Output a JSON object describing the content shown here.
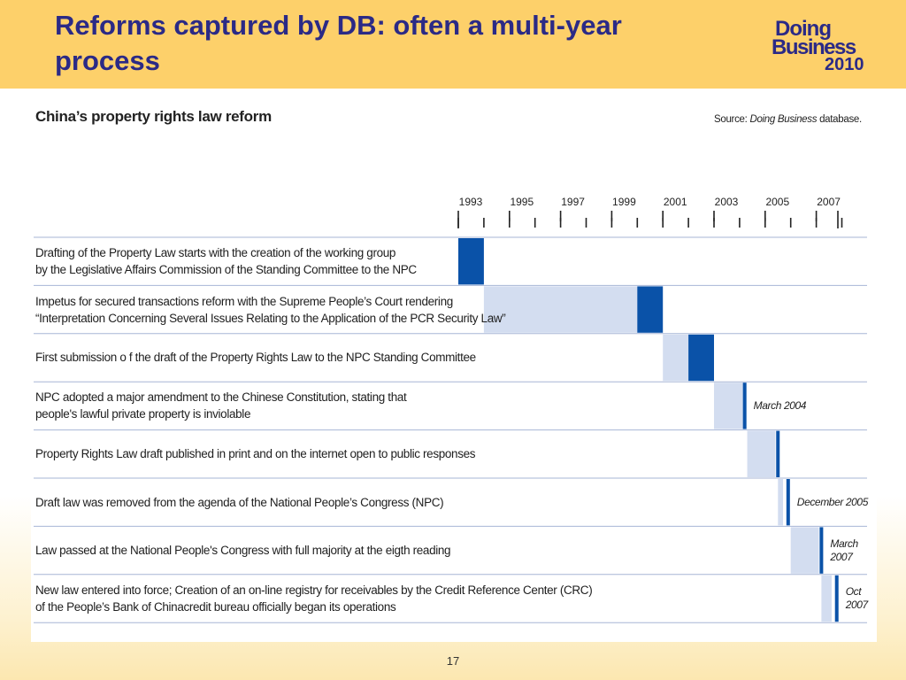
{
  "slide": {
    "title": "Reforms captured by DB: often a multi-year process",
    "page_number": "17"
  },
  "logo": {
    "line1": "Doing",
    "line2": "Business",
    "line3": "2010",
    "color": "#2b2a86"
  },
  "figure": {
    "title": "China’s property rights law reform",
    "source_label": "Source:",
    "source_italic": "Doing Business",
    "source_rest": " database."
  },
  "colors": {
    "header_bg": "#fdd06a",
    "bar_dark": "#0a52a8",
    "bar_light": "#d3ddf0",
    "gridline": "#a7b6d6"
  },
  "chart_data": {
    "type": "gantt",
    "year_ticks": [
      "1993",
      "1995",
      "1997",
      "1999",
      "2001",
      "2003",
      "2005",
      "2007"
    ],
    "rows": [
      {
        "label": "Drafting of the Property  Law starts with the creation of the working group\nby the Legislative Affairs Commission of the Standing Committee to the NPC",
        "light": null,
        "dark": [
          1993.0,
          1994.0
        ],
        "marker": null,
        "annotation": ""
      },
      {
        "label": "Impetus for secured transactions reform with the Supreme People’s Court rendering\n“Interpretation Concerning Several Issues Relating to the Application of the PCR Security Law”",
        "light": [
          1994.0,
          2000.0
        ],
        "dark": [
          2000.0,
          2001.0
        ],
        "marker": null,
        "annotation": ""
      },
      {
        "label": "First submission o f the draft of the Property Rights Law  to the NPC Standing Committee",
        "light": [
          2001.0,
          2002.0
        ],
        "dark": [
          2002.0,
          2003.0
        ],
        "marker": null,
        "annotation": ""
      },
      {
        "label": "NPC adopted a major amendment to the Chinese Constitution, stating that\npeople's lawful private property is inviolable",
        "light": [
          2003.0,
          2004.2
        ],
        "dark": null,
        "marker": 2004.2,
        "annotation": "March 2004"
      },
      {
        "label": "Property Rights Law draft published in print and on the internet open to public responses",
        "light": [
          2004.3,
          2005.4
        ],
        "dark": null,
        "marker": 2005.5,
        "annotation": ""
      },
      {
        "label": "Draft law was removed from the agenda of the National People’s Congress (NPC)",
        "light": [
          2005.5,
          2005.7
        ],
        "dark": null,
        "marker": 2005.9,
        "annotation": "December 2005"
      },
      {
        "label": "Law passed at the National People's Congress with full majority at the eigth reading",
        "light": [
          2006.0,
          2007.1
        ],
        "dark": null,
        "marker": 2007.2,
        "annotation": "March\n2007"
      },
      {
        "label": "New law entered into force; Creation of an on-line registry for receivables by the Credit Reference Center (CRC)\nof the People’s Bank of Chinacredit bureau officially began its operations",
        "light": [
          2007.2,
          2007.6
        ],
        "dark": null,
        "marker": 2007.8,
        "annotation": "Oct\n2007"
      }
    ]
  }
}
